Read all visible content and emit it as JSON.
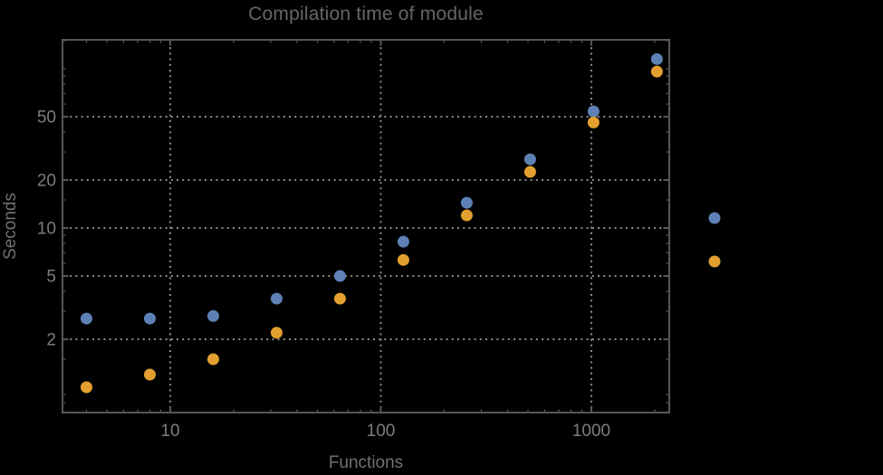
{
  "window": {
    "background_color": "#000000"
  },
  "chart_data": {
    "type": "scatter",
    "title": "Compilation time of module",
    "xlabel": "Functions",
    "ylabel": "Seconds",
    "xscale": "log",
    "yscale": "log",
    "grid": "dotted-major-only",
    "x": [
      4,
      8,
      16,
      32,
      64,
      128,
      256,
      512,
      1024,
      2048
    ],
    "series": [
      {
        "name": "series-1-blue",
        "color": "#5E81B5",
        "values": [
          2.7,
          2.7,
          2.8,
          3.6,
          5.0,
          8.2,
          14.4,
          27,
          54,
          115
        ]
      },
      {
        "name": "series-2-orange",
        "color": "#E3A02F",
        "values": [
          1.0,
          1.2,
          1.5,
          2.2,
          3.6,
          6.3,
          12,
          22.5,
          46,
          96
        ]
      }
    ],
    "x_axis": {
      "ticks_major": [
        10,
        100,
        1000
      ],
      "tick_labels": [
        "10",
        "100",
        "1000"
      ],
      "ticks_minor": [
        4,
        5,
        6,
        7,
        8,
        9,
        20,
        30,
        40,
        50,
        60,
        70,
        80,
        90,
        200,
        300,
        400,
        500,
        600,
        700,
        800,
        900,
        2000
      ],
      "range_log10": [
        0.4882,
        3.3699
      ]
    },
    "y_axis": {
      "ticks_major": [
        2,
        5,
        10,
        20,
        50
      ],
      "tick_labels": [
        "2",
        "5",
        "10",
        "20",
        "50"
      ],
      "ticks_minor": [
        0.7,
        0.8,
        0.9,
        1.5,
        3,
        4,
        6,
        7,
        8,
        9,
        15,
        30,
        40,
        60,
        70,
        80,
        90,
        100,
        150
      ],
      "range_log10": [
        -0.1591,
        2.1818
      ]
    },
    "legend": {
      "position": "right-outside",
      "labels_visible": false,
      "markers": [
        {
          "series": "series-1-blue",
          "color": "#5E81B5"
        },
        {
          "series": "series-2-orange",
          "color": "#E3A02F"
        }
      ]
    }
  },
  "colors": {
    "background": "#000000",
    "frame": "#575757",
    "grid": "#8C8C8C",
    "title_text": "#666666",
    "axis_label_text": "#717171",
    "tick_label_text": "#7D7D7D"
  }
}
